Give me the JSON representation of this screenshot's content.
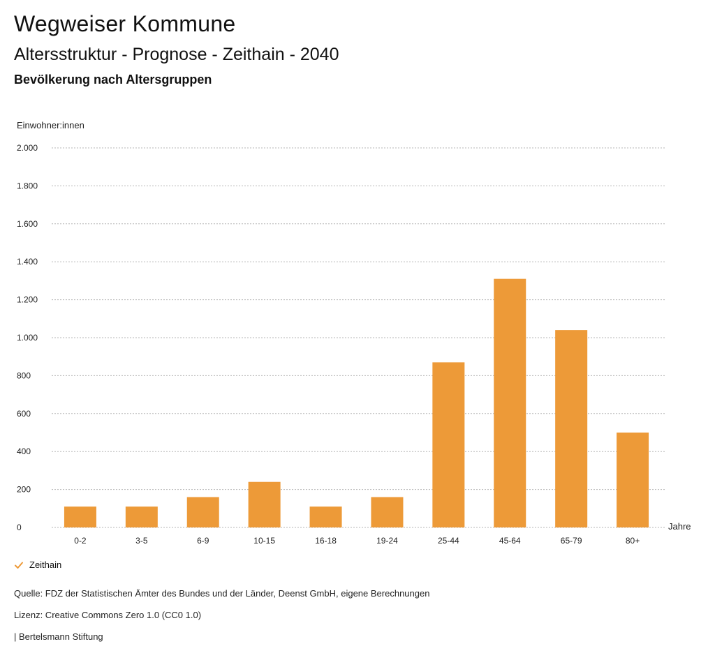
{
  "header": {
    "title": "Wegweiser Kommune",
    "subtitle": "Altersstruktur - Prognose - Zeithain - 2040",
    "caption": "Bevölkerung nach Altersgruppen"
  },
  "chart_data": {
    "type": "bar",
    "ylabel": "Einwohner:innen",
    "xlabel": "Jahre",
    "categories": [
      "0-2",
      "3-5",
      "6-9",
      "10-15",
      "16-18",
      "19-24",
      "25-44",
      "45-64",
      "65-79",
      "80+"
    ],
    "series": [
      {
        "name": "Zeithain",
        "values": [
          110,
          110,
          160,
          240,
          110,
          160,
          870,
          1310,
          1040,
          500
        ],
        "color": "#ED9A38"
      }
    ],
    "ylim": [
      0,
      2000
    ],
    "yticks": [
      0,
      200,
      400,
      600,
      800,
      1000,
      1200,
      1400,
      1600,
      1800,
      2000
    ],
    "ytick_labels": [
      "0",
      "200",
      "400",
      "600",
      "800",
      "1.000",
      "1.200",
      "1.400",
      "1.600",
      "1.800",
      "2.000"
    ],
    "grid": true,
    "legend_position": "bottom-left"
  },
  "legend": {
    "label": "Zeithain",
    "icon": "check-icon",
    "color": "#ED9A38"
  },
  "footer": {
    "source": "Quelle: FDZ der Statistischen Ämter des Bundes und der Länder, Deenst GmbH, eigene Berechnungen",
    "license": "Lizenz: Creative Commons Zero 1.0 (CC0 1.0)",
    "publisher": "| Bertelsmann Stiftung"
  }
}
